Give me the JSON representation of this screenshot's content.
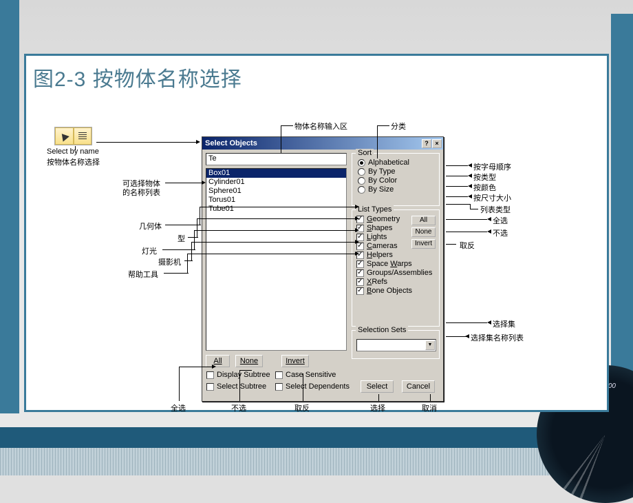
{
  "slide": {
    "title": "图2-3 按物体名称选择"
  },
  "toolbar": {
    "tooltip": "Select by name",
    "tooltip_cn": "按物体名称选择"
  },
  "dialog": {
    "title": "Select Objects",
    "input_value": "Te",
    "items": [
      "Box01",
      "Cylinder01",
      "Sphere01",
      "Torus01",
      "Tube01"
    ],
    "selected_index": 0
  },
  "sort": {
    "legend": "Sort",
    "options": [
      "Alphabetical",
      "By Type",
      "By Color",
      "By Size"
    ],
    "selected": 0
  },
  "list_types": {
    "legend": "List Types",
    "items": [
      {
        "label": "Geometry",
        "u": "G",
        "checked": true
      },
      {
        "label": "Shapes",
        "u": "S",
        "checked": true
      },
      {
        "label": "Lights",
        "u": "L",
        "checked": true
      },
      {
        "label": "Cameras",
        "u": "C",
        "checked": true
      },
      {
        "label": "Helpers",
        "u": "H",
        "checked": true
      },
      {
        "label": "Space Warps",
        "u": "W",
        "checked": true
      },
      {
        "label": "Groups/Assemblies",
        "checked": true
      },
      {
        "label": "XRefs",
        "u": "X",
        "checked": true
      },
      {
        "label": "Bone Objects",
        "u": "B",
        "checked": true
      }
    ],
    "btn_all": "All",
    "btn_none": "None",
    "btn_invert": "Invert"
  },
  "selection_sets": {
    "legend": "Selection Sets"
  },
  "buttons": {
    "all": "All",
    "none": "None",
    "invert": "Invert",
    "display_subtree": "Display Subtree",
    "case_sensitive": "Case Sensitive",
    "select_subtree": "Select Subtree",
    "select_dependents": "Select Dependents",
    "select": "Select",
    "cancel": "Cancel"
  },
  "labels": {
    "input_area": "物体名称输入区",
    "category": "分类",
    "selectable_list": "可选择物体",
    "selectable_list2": "的名称列表",
    "geometry": "几何体",
    "shape": "型",
    "lights": "灯光",
    "cameras": "摄影机",
    "helpers": "帮助工具",
    "alphabetical": "按字母顺序",
    "by_type": "按类型",
    "by_color": "按颜色",
    "by_size": "按尺寸大小",
    "list_types": "列表类型",
    "all": "全选",
    "none": "不选",
    "invert": "取反",
    "selection_sets": "选择集",
    "sets_list": "选择集名称列表",
    "btm_all": "全选",
    "btm_none": "不选",
    "btm_invert": "取反",
    "btm_select": "选择",
    "btm_cancel": "取消"
  }
}
